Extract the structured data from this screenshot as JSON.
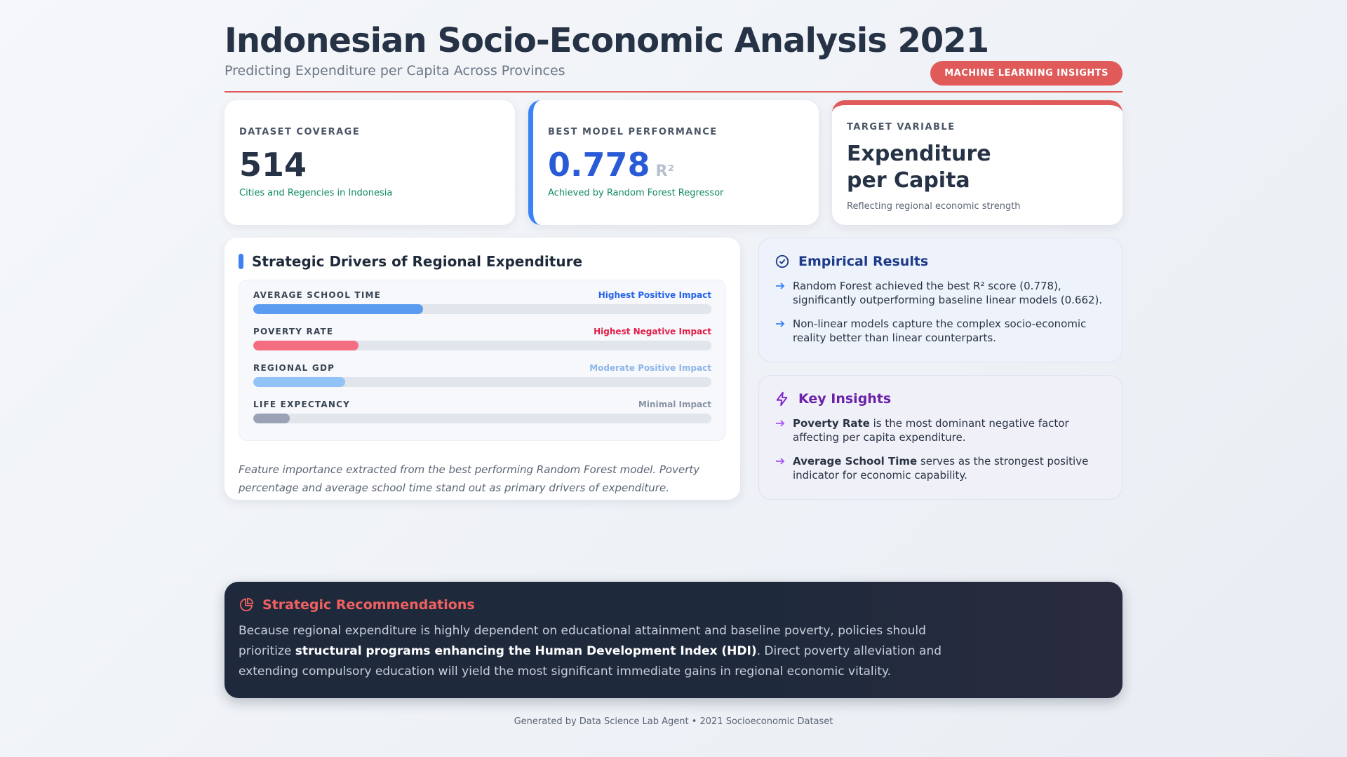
{
  "header": {
    "title": "Indonesian Socio-Economic Analysis 2021",
    "subtitle": "Predicting Expenditure per Capita Across Provinces",
    "badge": "MACHINE LEARNING INSIGHTS"
  },
  "cards": [
    {
      "label": "DATASET COVERAGE",
      "value": "514",
      "note": "Cities and Regencies in Indonesia"
    },
    {
      "label": "BEST MODEL PERFORMANCE",
      "value": "0.778",
      "unit": "R²",
      "note": "Achieved by Random Forest Regressor"
    },
    {
      "label": "TARGET VARIABLE",
      "value": "Expenditure per Capita",
      "note": "Reflecting regional economic strength"
    }
  ],
  "drivers": {
    "title": "Strategic Drivers of Regional Expenditure",
    "xlim": [
      0,
      100
    ],
    "items": [
      {
        "name": "AVERAGE SCHOOL TIME",
        "impact": "Highest Positive Impact",
        "value": 37,
        "color": "#5b9cf0",
        "impact_color": "#2563eb"
      },
      {
        "name": "POVERTY RATE",
        "impact": "Highest Negative Impact",
        "value": 23,
        "color": "#f46e82",
        "impact_color": "#e11d48"
      },
      {
        "name": "REGIONAL GDP",
        "impact": "Moderate Positive Impact",
        "value": 20,
        "color": "#93c3f6",
        "impact_color": "#8db6ea"
      },
      {
        "name": "LIFE EXPECTANCY",
        "impact": "Minimal Impact",
        "value": 8,
        "color": "#9aa3b5",
        "impact_color": "#8a94a6"
      }
    ],
    "caption": "Feature importance extracted from the best performing Random Forest model. Poverty percentage and average school time stand out as primary drivers of expenditure."
  },
  "results": {
    "title": "Empirical Results",
    "items": [
      "Random Forest achieved the best R² score (0.778), significantly outperforming baseline linear models (0.662).",
      "Non-linear models capture the complex socio-economic reality better than linear counterparts."
    ]
  },
  "insights": {
    "title": "Key Insights",
    "items": [
      {
        "bold": "Poverty Rate",
        "text": " is the most dominant negative factor affecting per capita expenditure."
      },
      {
        "bold": "Average School Time",
        "text": " serves as the strongest positive indicator for economic capability."
      }
    ]
  },
  "recommendations": {
    "title": "Strategic Recommendations",
    "text_1": "Because regional expenditure is highly dependent on educational attainment and baseline poverty, policies should prioritize ",
    "bold": "structural programs enhancing the Human Development Index (HDI)",
    "text_2": ". Direct poverty alleviation and extending compulsory education will yield the most significant immediate gains in regional economic vitality."
  },
  "footer": "Generated by Data Science Lab Agent • 2021 Socioeconomic Dataset"
}
